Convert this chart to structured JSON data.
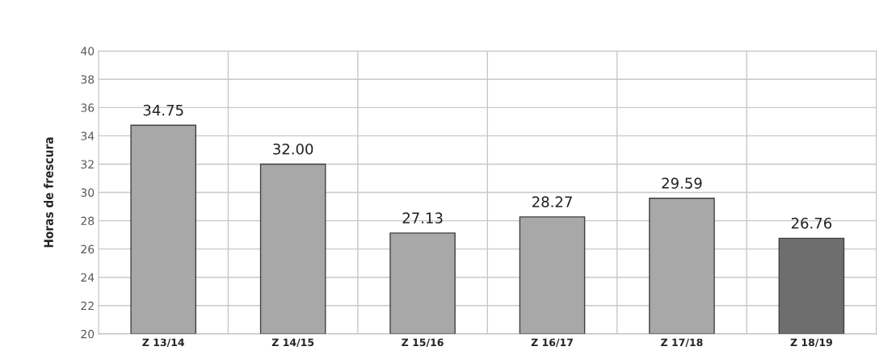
{
  "chart_data": {
    "type": "bar",
    "ylabel": "Horas de frescura",
    "categories": [
      "Z 13/14",
      "Z 14/15",
      "Z 15/16",
      "Z 16/17",
      "Z 17/18",
      "Z 18/19"
    ],
    "values": [
      34.75,
      32.0,
      27.13,
      28.27,
      29.59,
      26.76
    ],
    "value_labels": [
      "34.75",
      "32.00",
      "27.13",
      "28.27",
      "29.59",
      "26.76"
    ],
    "colors": [
      "#a8a8a8",
      "#a8a8a8",
      "#a8a8a8",
      "#a8a8a8",
      "#a8a8a8",
      "#6e6e6e"
    ],
    "ylim": [
      20,
      40
    ],
    "yticks": [
      20,
      22,
      24,
      26,
      28,
      30,
      32,
      34,
      36,
      38,
      40
    ],
    "grid": true
  }
}
